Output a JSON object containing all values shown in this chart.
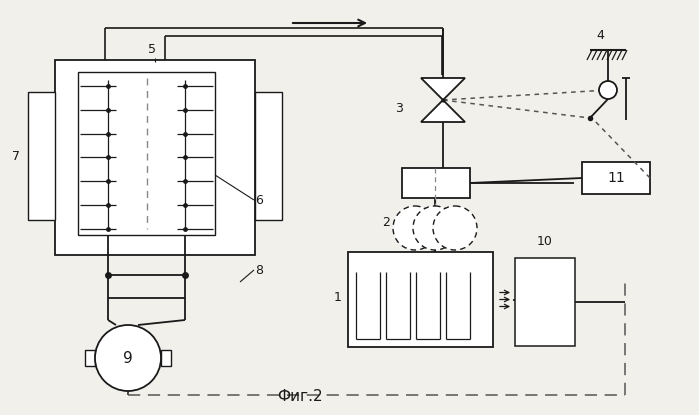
{
  "title": "Фиг.2",
  "bg_color": "#f2f0eb",
  "line_color": "#1a1a1a",
  "dot_color": "#555555",
  "fig_width": 6.99,
  "fig_height": 4.15
}
